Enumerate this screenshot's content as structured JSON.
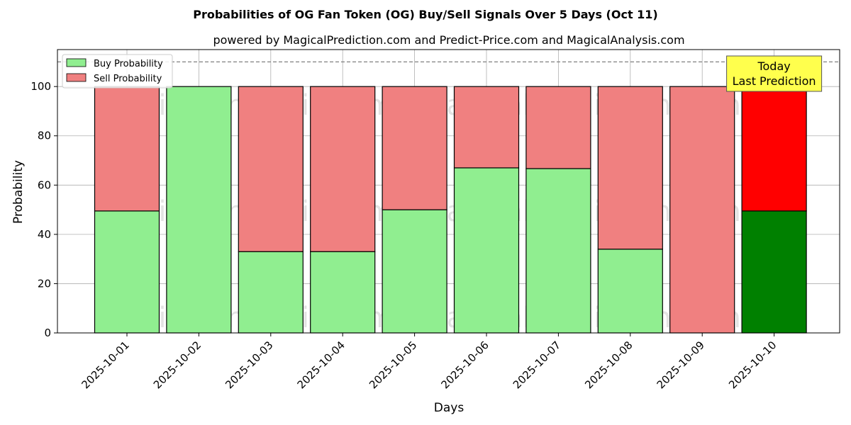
{
  "chart_data": {
    "type": "bar",
    "stacked": true,
    "title": "Probabilities of OG Fan Token (OG) Buy/Sell Signals Over 5 Days (Oct 11)",
    "subtitle": "powered by MagicalPrediction.com and Predict-Price.com and MagicalAnalysis.com",
    "xlabel": "Days",
    "ylabel": "Probability",
    "ylim": [
      0,
      115
    ],
    "yticks": [
      0,
      20,
      40,
      60,
      80,
      100
    ],
    "reference_line": 110,
    "categories": [
      "2025-10-01",
      "2025-10-02",
      "2025-10-03",
      "2025-10-04",
      "2025-10-05",
      "2025-10-06",
      "2025-10-07",
      "2025-10-08",
      "2025-10-09",
      "2025-10-10"
    ],
    "series": [
      {
        "name": "Buy Probability",
        "values": [
          49.5,
          100,
          33,
          33,
          50,
          67,
          66.7,
          34,
          0,
          49.5
        ]
      },
      {
        "name": "Sell Probability",
        "values": [
          50.5,
          0,
          67,
          67,
          50,
          33,
          33.3,
          66,
          100,
          50.5
        ]
      }
    ],
    "colors": {
      "buy": "#90ee90",
      "sell": "#f08080",
      "buy_highlight": "#008000",
      "sell_highlight": "#ff0000",
      "annotation_bg": "#ffff4d"
    },
    "highlight_index": 9,
    "annotation": {
      "line1": "Today",
      "line2": "Last Prediction"
    },
    "watermarks": [
      "MagicalAnalysis.com",
      "MagicalPrediction.com"
    ],
    "grid": true,
    "legend_position": "upper-left"
  }
}
